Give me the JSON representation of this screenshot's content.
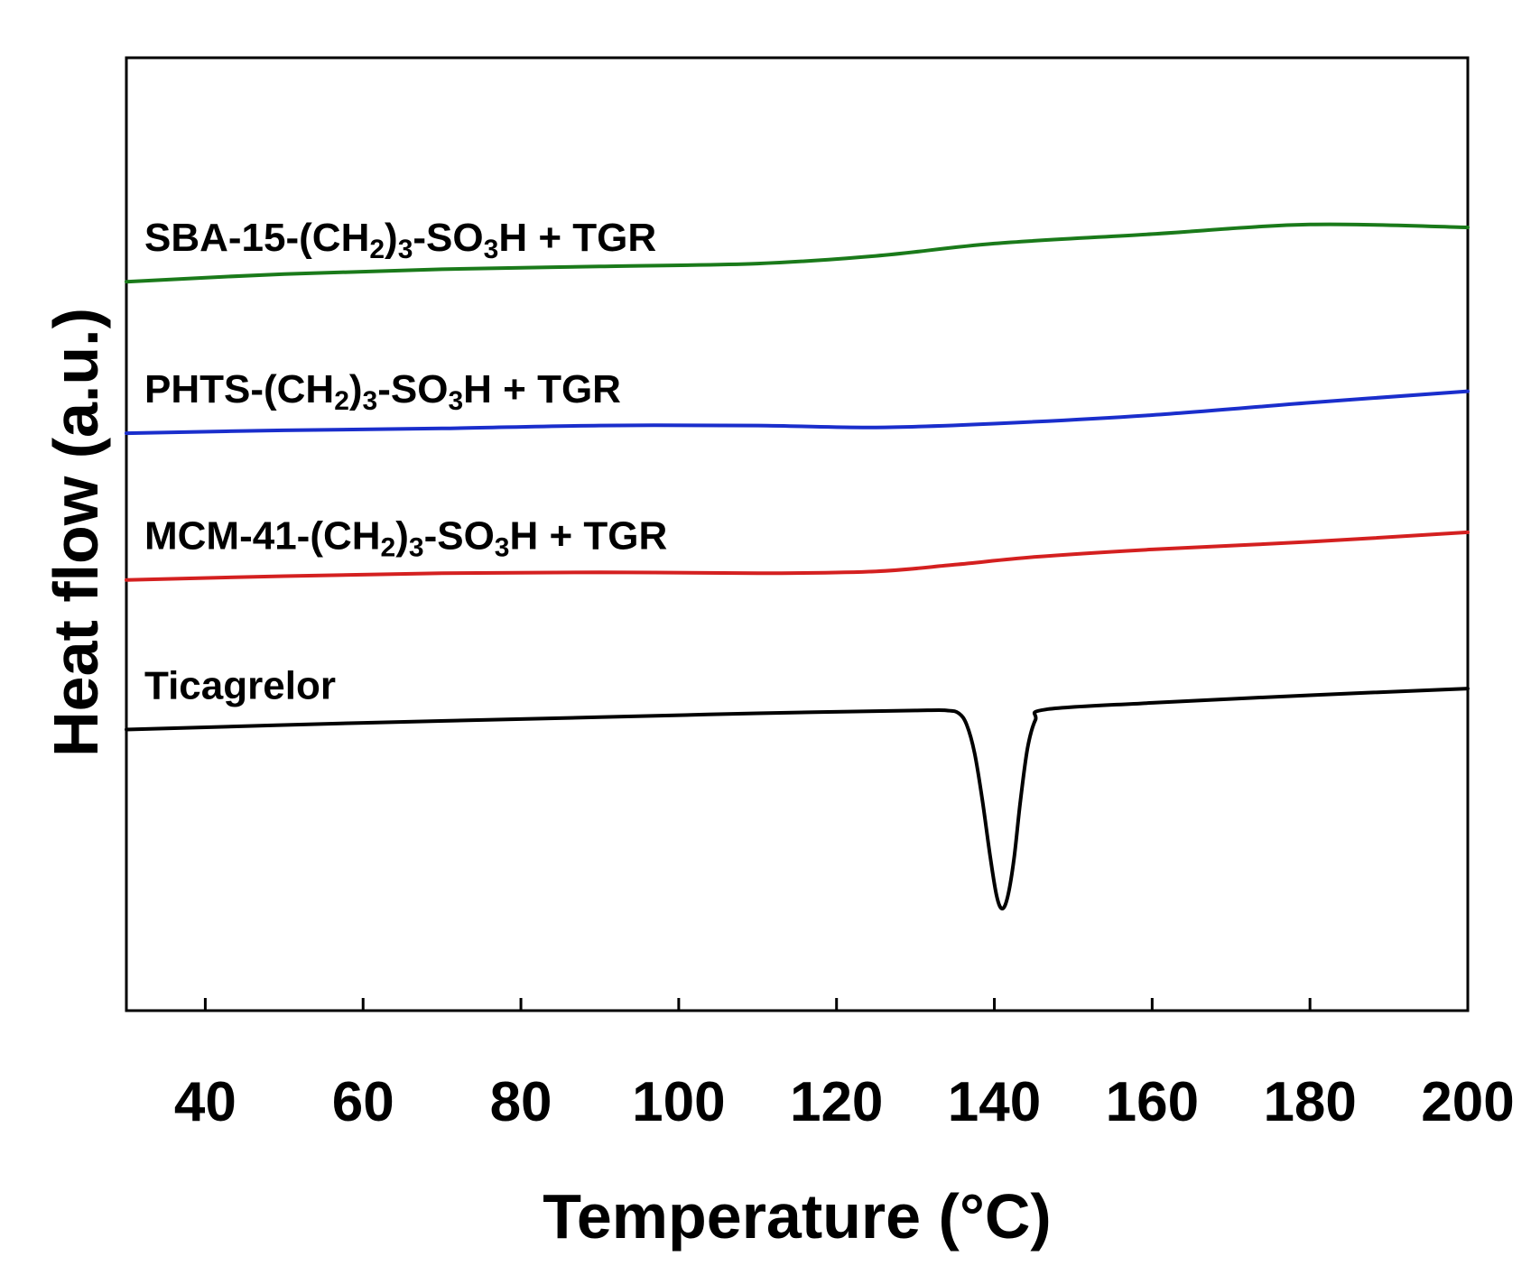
{
  "chart_data": {
    "type": "line",
    "title": "",
    "xlabel": "Temperature (°C)",
    "ylabel": "Heat flow (a.u.)",
    "xlim": [
      30,
      200
    ],
    "ylim": [
      0,
      100
    ],
    "x_ticks": [
      40,
      60,
      80,
      100,
      120,
      140,
      160,
      180,
      200
    ],
    "y_ticks": [],
    "grid": false,
    "legend": "inline labels above each curve",
    "series": [
      {
        "name": "SBA-15-(CH2)3-SO3H + TGR",
        "label_parts": [
          {
            "t": "SBA-15-(CH"
          },
          {
            "t": "2",
            "sub": true
          },
          {
            "t": ")"
          },
          {
            "t": "3",
            "sub": true
          },
          {
            "t": "-SO"
          },
          {
            "t": "3",
            "sub": true
          },
          {
            "t": "H + TGR"
          }
        ],
        "color": "#1a7a1a",
        "points": [
          [
            30,
            76.5
          ],
          [
            50,
            77.3
          ],
          [
            70,
            77.8
          ],
          [
            90,
            78.1
          ],
          [
            110,
            78.4
          ],
          [
            125,
            79.2
          ],
          [
            140,
            80.5
          ],
          [
            160,
            81.5
          ],
          [
            180,
            82.5
          ],
          [
            200,
            82.2
          ]
        ]
      },
      {
        "name": "PHTS-(CH2)3-SO3H + TGR",
        "label_parts": [
          {
            "t": "PHTS-(CH"
          },
          {
            "t": "2",
            "sub": true
          },
          {
            "t": ")"
          },
          {
            "t": "3",
            "sub": true
          },
          {
            "t": "-SO"
          },
          {
            "t": "3",
            "sub": true
          },
          {
            "t": "H + TGR"
          }
        ],
        "color": "#1a2ecc",
        "points": [
          [
            30,
            60.6
          ],
          [
            50,
            60.9
          ],
          [
            70,
            61.1
          ],
          [
            90,
            61.4
          ],
          [
            110,
            61.4
          ],
          [
            125,
            61.2
          ],
          [
            140,
            61.6
          ],
          [
            160,
            62.5
          ],
          [
            180,
            63.8
          ],
          [
            200,
            65.0
          ]
        ]
      },
      {
        "name": "MCM-41-(CH2)3-SO3H + TGR",
        "label_parts": [
          {
            "t": "MCM-41-(CH"
          },
          {
            "t": "2",
            "sub": true
          },
          {
            "t": ")"
          },
          {
            "t": "3",
            "sub": true
          },
          {
            "t": "-SO"
          },
          {
            "t": "3",
            "sub": true
          },
          {
            "t": "H + TGR"
          }
        ],
        "color": "#d42020",
        "points": [
          [
            30,
            45.2
          ],
          [
            50,
            45.6
          ],
          [
            70,
            45.9
          ],
          [
            90,
            46.0
          ],
          [
            110,
            45.9
          ],
          [
            125,
            46.1
          ],
          [
            135,
            46.8
          ],
          [
            145,
            47.6
          ],
          [
            160,
            48.4
          ],
          [
            180,
            49.2
          ],
          [
            200,
            50.2
          ]
        ]
      },
      {
        "name": "Ticagrelor",
        "label_parts": [
          {
            "t": "Ticagrelor"
          }
        ],
        "color": "#000000",
        "points": [
          [
            30,
            29.5
          ],
          [
            60,
            30.2
          ],
          [
            90,
            30.8
          ],
          [
            110,
            31.2
          ],
          [
            130,
            31.5
          ],
          [
            134,
            31.5
          ],
          [
            135.5,
            31.2
          ],
          [
            136.5,
            30.0
          ],
          [
            137.5,
            27.0
          ],
          [
            138.5,
            22.0
          ],
          [
            139.5,
            16.0
          ],
          [
            140.3,
            12.0
          ],
          [
            141,
            10.7
          ],
          [
            141.7,
            12.0
          ],
          [
            142.5,
            16.0
          ],
          [
            143.3,
            22.0
          ],
          [
            144.2,
            27.5
          ],
          [
            145.2,
            30.5
          ],
          [
            146.5,
            31.6
          ],
          [
            160,
            32.3
          ],
          [
            180,
            33.1
          ],
          [
            200,
            33.8
          ]
        ]
      }
    ]
  }
}
